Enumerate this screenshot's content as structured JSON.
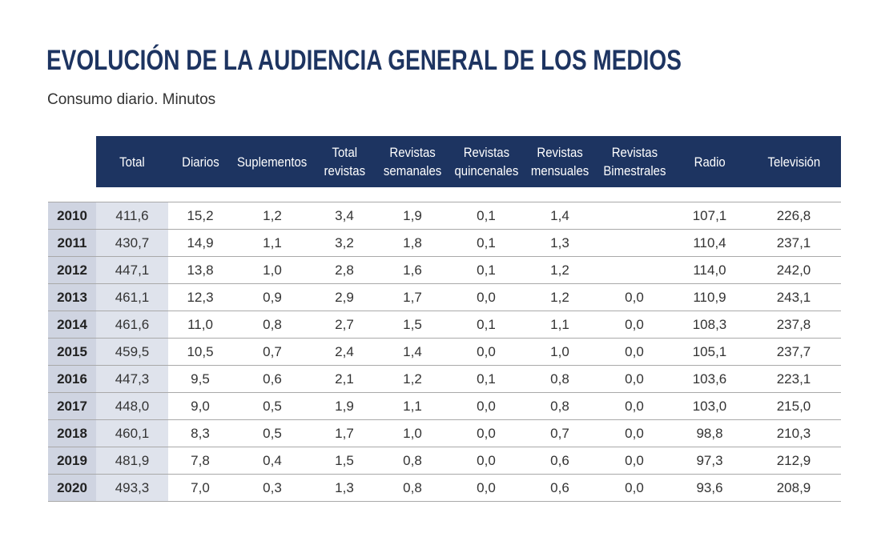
{
  "title": "EVOLUCIÓN DE LA AUDIENCIA GENERAL DE LOS MEDIOS",
  "subtitle": "Consumo diario. Minutos",
  "colors": {
    "header_bg": "#1d3461",
    "year_bg": "#cfd4e1",
    "total_bg": "#dfe3ec",
    "title": "#1d3461"
  },
  "table": {
    "headers": [
      {
        "key": "total",
        "line1": "Total",
        "line2": ""
      },
      {
        "key": "diarios",
        "line1": "Diarios",
        "line2": ""
      },
      {
        "key": "suplementos",
        "line1": "Suplementos",
        "line2": ""
      },
      {
        "key": "total_revistas",
        "line1": "Total",
        "line2": "revistas"
      },
      {
        "key": "revistas_semanales",
        "line1": "Revistas",
        "line2": "semanales"
      },
      {
        "key": "revistas_quincenales",
        "line1": "Revistas",
        "line2": "quincenales"
      },
      {
        "key": "revistas_mensuales",
        "line1": "Revistas",
        "line2": "mensuales"
      },
      {
        "key": "revistas_bimestrales",
        "line1": "Revistas",
        "line2": "Bimestrales"
      },
      {
        "key": "radio",
        "line1": "Radio",
        "line2": ""
      },
      {
        "key": "television",
        "line1": "Televisión",
        "line2": ""
      }
    ],
    "rows": [
      [
        "2010",
        "411,6",
        "15,2",
        "1,2",
        "3,4",
        "1,9",
        "0,1",
        "1,4",
        "",
        "107,1",
        "226,8"
      ],
      [
        "2011",
        "430,7",
        "14,9",
        "1,1",
        "3,2",
        "1,8",
        "0,1",
        "1,3",
        "",
        "110,4",
        "237,1"
      ],
      [
        "2012",
        "447,1",
        "13,8",
        "1,0",
        "2,8",
        "1,6",
        "0,1",
        "1,2",
        "",
        "114,0",
        "242,0"
      ],
      [
        "2013",
        "461,1",
        "12,3",
        "0,9",
        "2,9",
        "1,7",
        "0,0",
        "1,2",
        "0,0",
        "110,9",
        "243,1"
      ],
      [
        "2014",
        "461,6",
        "11,0",
        "0,8",
        "2,7",
        "1,5",
        "0,1",
        "1,1",
        "0,0",
        "108,3",
        "237,8"
      ],
      [
        "2015",
        "459,5",
        "10,5",
        "0,7",
        "2,4",
        "1,4",
        "0,0",
        "1,0",
        "0,0",
        "105,1",
        "237,7"
      ],
      [
        "2016",
        "447,3",
        "9,5",
        "0,6",
        "2,1",
        "1,2",
        "0,1",
        "0,8",
        "0,0",
        "103,6",
        "223,1"
      ],
      [
        "2017",
        "448,0",
        "9,0",
        "0,5",
        "1,9",
        "1,1",
        "0,0",
        "0,8",
        "0,0",
        "103,0",
        "215,0"
      ],
      [
        "2018",
        "460,1",
        "8,3",
        "0,5",
        "1,7",
        "1,0",
        "0,0",
        "0,7",
        "0,0",
        "98,8",
        "210,3"
      ],
      [
        "2019",
        "481,9",
        "7,8",
        "0,4",
        "1,5",
        "0,8",
        "0,0",
        "0,6",
        "0,0",
        "97,3",
        "212,9"
      ],
      [
        "2020",
        "493,3",
        "7,0",
        "0,3",
        "1,3",
        "0,8",
        "0,0",
        "0,6",
        "0,0",
        "93,6",
        "208,9"
      ]
    ]
  }
}
